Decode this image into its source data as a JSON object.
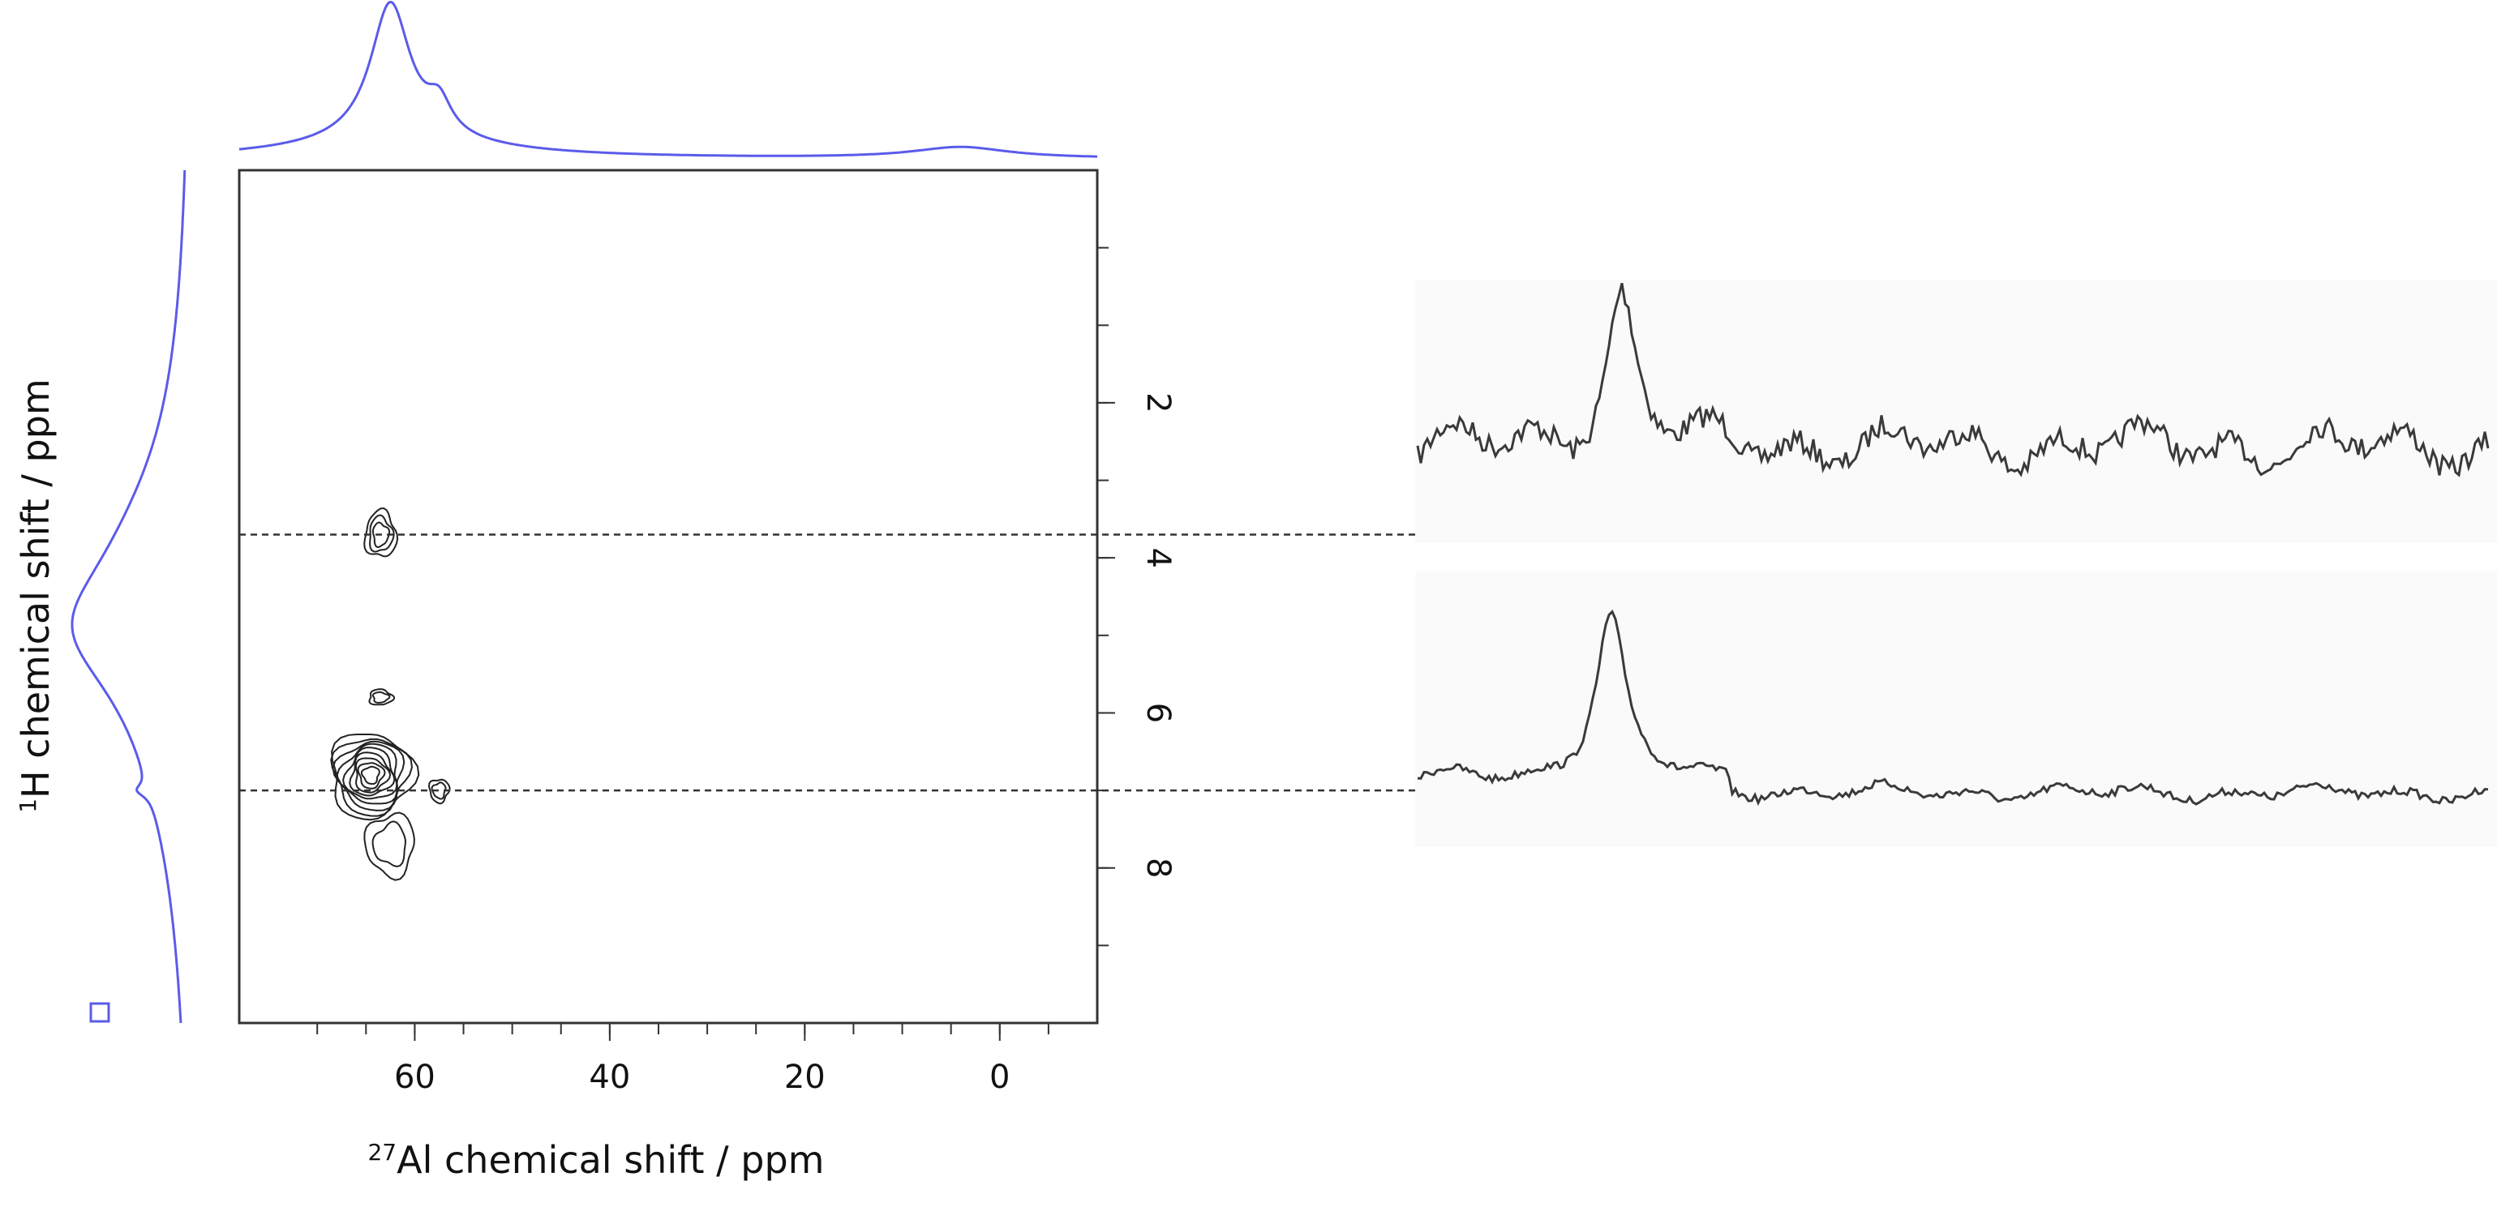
{
  "chart_data": {
    "type": "2D NMR correlation spectrum (contour) with projections and extracted slices",
    "xlabel": {
      "superscript": "27",
      "text": "Al chemical shift / ppm"
    },
    "ylabel": {
      "superscript": "1",
      "text": "H chemical shift / ppm"
    },
    "xlim": [
      78,
      -10
    ],
    "ylim": [
      -1,
      10
    ],
    "x_tick_labels": [
      "60",
      "40",
      "20",
      "0"
    ],
    "x_ticks": [
      60,
      40,
      20,
      0
    ],
    "x_minor_ticks": [
      70,
      65,
      60,
      55,
      50,
      45,
      40,
      35,
      30,
      25,
      20,
      15,
      10,
      5,
      0,
      -5
    ],
    "y_tick_labels": [
      "2",
      "4",
      "6",
      "8"
    ],
    "y_ticks": [
      2,
      4,
      6,
      8
    ],
    "y_minor_ticks": [
      0,
      1,
      2,
      3,
      4,
      5,
      6,
      7,
      8,
      9
    ],
    "top_projection": {
      "nucleus": "27Al",
      "peaks": [
        {
          "x": 62.5,
          "height": 1.0,
          "width": 2.5
        },
        {
          "x": 57.5,
          "height": 0.22,
          "width": 1.5
        },
        {
          "x": 62,
          "height": 0.12,
          "width": 12
        },
        {
          "x": 4,
          "height": 0.08,
          "width": 6
        }
      ]
    },
    "left_projection": {
      "nucleus": "1H",
      "peaks": [
        {
          "y": 4.9,
          "height": 1.0,
          "width": 1.1
        },
        {
          "y": 3.8,
          "height": 0.35,
          "width": 1.6
        },
        {
          "y": 7.0,
          "height": 0.15,
          "width": 0.1
        },
        {
          "y": 6.0,
          "height": 0.3,
          "width": 2.5
        }
      ]
    },
    "contours": [
      {
        "x": 63.5,
        "y": 3.7,
        "levels": 3,
        "sx": 1.6,
        "sy": 0.3
      },
      {
        "x": 63.5,
        "y": 5.8,
        "levels": 2,
        "sx": 1.2,
        "sy": 0.1
      },
      {
        "x": 64.5,
        "y": 6.8,
        "levels": 9,
        "sx": 4.2,
        "sy": 0.55
      },
      {
        "x": 57.5,
        "y": 7.0,
        "levels": 2,
        "sx": 1.0,
        "sy": 0.15
      },
      {
        "x": 62.5,
        "y": 7.7,
        "levels": 2,
        "sx": 2.5,
        "sy": 0.4
      }
    ],
    "slices": [
      {
        "y": 3.7,
        "peak_x_fraction": 0.19,
        "noise": "high"
      },
      {
        "y": 7.0,
        "peak_x_fraction": 0.18,
        "noise": "low"
      }
    ],
    "colors": {
      "projection": "#5b5bea",
      "contour": "#222222",
      "slice": "#3a3a3a",
      "axis": "#333333"
    }
  }
}
